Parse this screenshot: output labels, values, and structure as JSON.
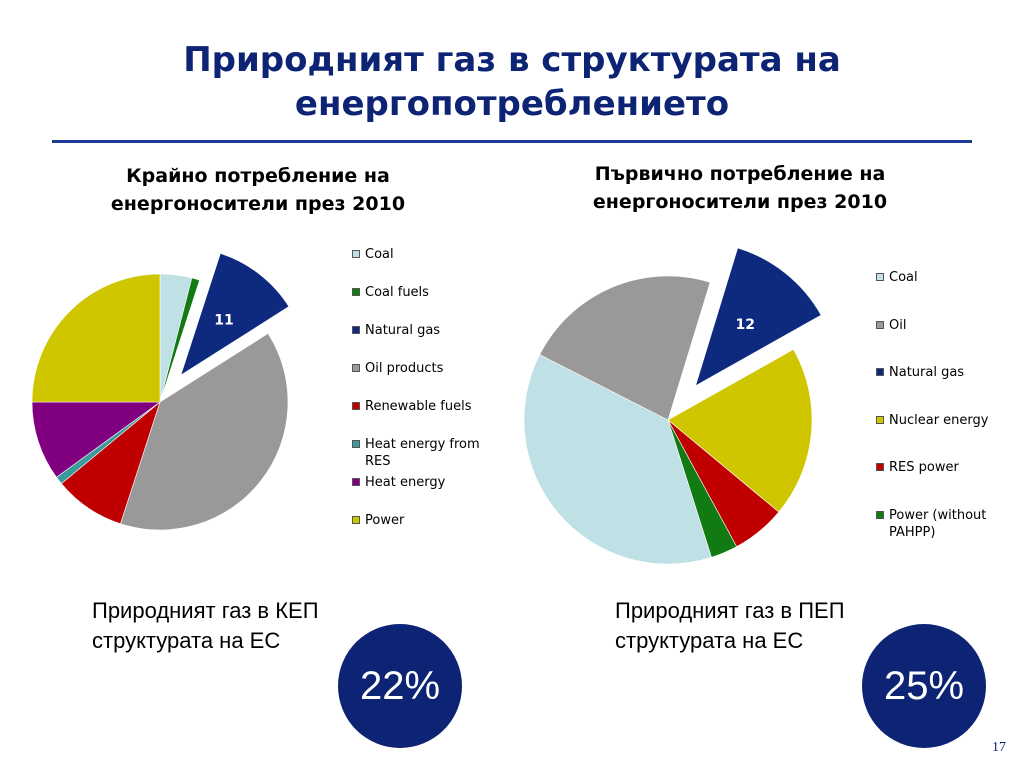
{
  "slide": {
    "title": "Природният газ в структурата на енергопотреблението",
    "page_number": "17"
  },
  "captions": {
    "left": "Природният газ в КЕП структурата на ЕС",
    "right": "Природният газ в ПЕП структурата на ЕС"
  },
  "highlights": {
    "left_value": "22%",
    "right_value": "25%"
  },
  "chart_data": [
    {
      "type": "pie",
      "title": "Крайно потребление на енергоносители през 2010",
      "start_angle_deg": 0,
      "exploded_slice": "Natural gas",
      "slices": [
        {
          "label": "Coal",
          "value": 4,
          "color": "#bfe0e4"
        },
        {
          "label": "Coal fuels",
          "value": 1,
          "color": "#127a12"
        },
        {
          "label": "Natural gas",
          "value": 11,
          "color": "#0d2a7f",
          "data_label": "11"
        },
        {
          "label": "Oil products",
          "value": 39,
          "color": "#999999"
        },
        {
          "label": "Renewable fuels",
          "value": 9,
          "color": "#c00000"
        },
        {
          "label": "Heat energy from RES",
          "value": 1,
          "color": "#3c9a9a"
        },
        {
          "label": "Heat energy",
          "value": 10,
          "color": "#800080"
        },
        {
          "label": "Power",
          "value": 25,
          "color": "#cfc600"
        }
      ],
      "legend_position": "right"
    },
    {
      "type": "pie",
      "title": "Първично потребление на енергоносители през 2010",
      "start_angle_deg": 17,
      "exploded_slice": "Natural gas",
      "slices": [
        {
          "label": "Coal",
          "value": 37,
          "color": "#bfe0e4"
        },
        {
          "label": "Oil",
          "value": 22,
          "color": "#999999"
        },
        {
          "label": "Natural gas",
          "value": 12,
          "color": "#0d2a7f",
          "data_label": "12"
        },
        {
          "label": "Nuclear energy",
          "value": 19,
          "color": "#cfc600"
        },
        {
          "label": "RES power",
          "value": 6,
          "color": "#c00000"
        },
        {
          "label": "Power (without PAHPP)",
          "value": 3,
          "color": "#127a12"
        }
      ],
      "pie_order": [
        "Natural gas",
        "Nuclear energy",
        "RES power",
        "Power (without PAHPP)",
        "Coal",
        "Oil"
      ],
      "legend_position": "right"
    }
  ]
}
